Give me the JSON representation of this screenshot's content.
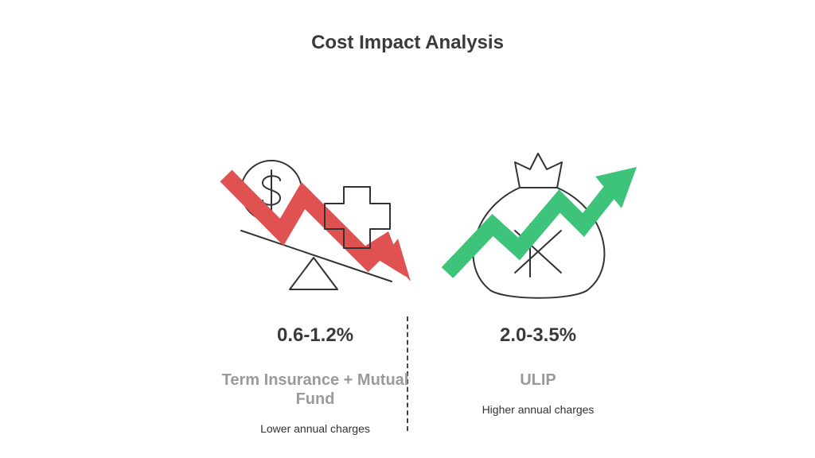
{
  "title": "Cost Impact Analysis",
  "left": {
    "value": "0.6-1.2%",
    "name": "Term Insurance + Mutual Fund",
    "description": "Lower annual charges",
    "arrow_color": "#e05252",
    "icons": [
      "dollar-coin-icon",
      "medical-cross-icon",
      "seesaw-scale-icon",
      "down-trend-arrow-icon"
    ]
  },
  "right": {
    "value": "2.0-3.5%",
    "name": "ULIP",
    "description": "Higher annual charges",
    "arrow_color": "#3dc47a",
    "icons": [
      "money-bag-icon",
      "up-trend-arrow-icon"
    ]
  }
}
